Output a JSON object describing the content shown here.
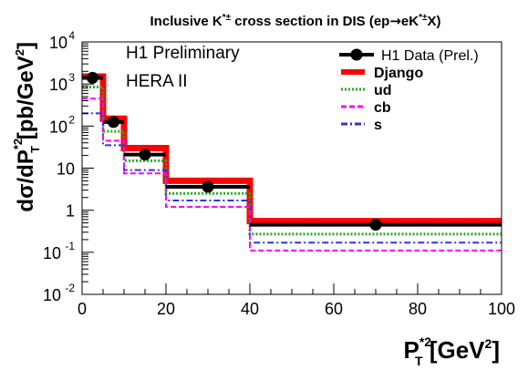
{
  "chart_data": {
    "type": "line",
    "title": "Inclusive K*± cross section in DIS (ep → eK*±X)",
    "title_parts": {
      "pre": "Inclusive K",
      "sup": "*±",
      "mid": " cross section in DIS (ep",
      "arrow": "→",
      "post_a": "eK",
      "post_sup": "*±",
      "post_b": "X)"
    },
    "annotations": [
      "H1 Preliminary",
      "HERA II"
    ],
    "xlabel": "P_T^{*2} [GeV^2]",
    "xlabel_parts": {
      "main": "P",
      "sup": "*2",
      "sub": "T",
      "unit_open": " [GeV",
      "unit_sup": "2",
      "unit_close": "]"
    },
    "ylabel": "dσ/dP_T^{*2} [pb/GeV^2]",
    "ylabel_parts": {
      "pre": "dσ/dP",
      "sup": "*2",
      "sub": "T",
      "unit_open": " [pb/GeV",
      "unit_sup": "2",
      "unit_close": "]"
    },
    "xlim": [
      0,
      100
    ],
    "ylim": [
      0.01,
      10000
    ],
    "yscale": "log",
    "xticks": [
      "0",
      "20",
      "40",
      "60",
      "80",
      "100"
    ],
    "yticks": [
      {
        "base": "10",
        "exp": "-2",
        "v": 0.01
      },
      {
        "base": "10",
        "exp": "-1",
        "v": 0.1
      },
      {
        "base": "1",
        "exp": "",
        "v": 1
      },
      {
        "base": "10",
        "exp": "",
        "v": 10
      },
      {
        "base": "10",
        "exp": "2",
        "v": 100
      },
      {
        "base": "10",
        "exp": "3",
        "v": 1000
      },
      {
        "base": "10",
        "exp": "4",
        "v": 10000
      }
    ],
    "bin_edges": [
      0,
      5,
      10,
      20,
      40,
      100
    ],
    "legend_position": "top-right",
    "series": [
      {
        "name": "H1 Data (Prel.)",
        "kind": "points",
        "color": "#000000",
        "x": [
          2.5,
          7.5,
          15,
          30,
          70
        ],
        "y": [
          1400,
          125,
          21,
          3.6,
          0.45
        ],
        "xerr": [
          2.5,
          2.5,
          5,
          10,
          30
        ]
      },
      {
        "name": "Django",
        "kind": "hist",
        "color": "#ff0000",
        "dash": "",
        "width": 7,
        "values": [
          1500,
          150,
          30,
          5.0,
          0.55
        ]
      },
      {
        "name": "ud",
        "kind": "hist",
        "color": "#22aa22",
        "dash": "2 2",
        "width": 3,
        "values": [
          850,
          75,
          15,
          2.5,
          0.27
        ]
      },
      {
        "name": "cb",
        "kind": "hist",
        "color": "#ff00ff",
        "dash": "6 3",
        "width": 2,
        "values": [
          450,
          45,
          7.5,
          1.2,
          0.11
        ]
      },
      {
        "name": "s",
        "kind": "hist",
        "color": "#3333dd",
        "dash": "7 3 2 3",
        "width": 2,
        "values": [
          200,
          35,
          9,
          1.7,
          0.17
        ]
      }
    ]
  }
}
